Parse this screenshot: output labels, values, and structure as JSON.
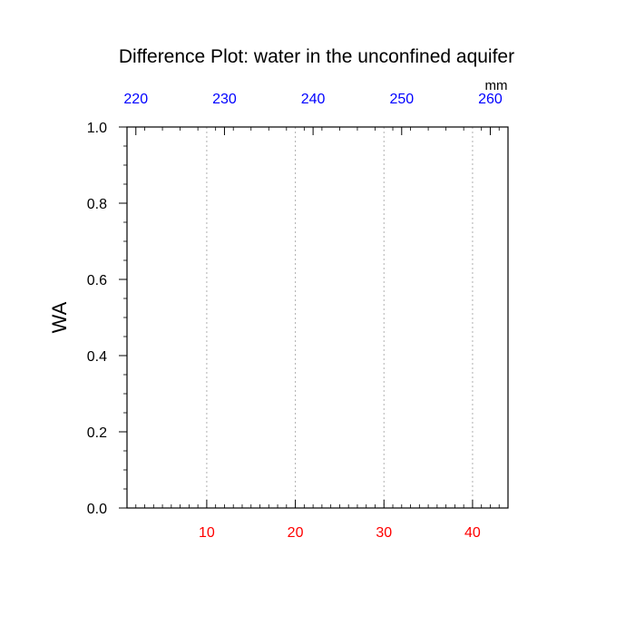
{
  "chart_data": {
    "type": "line",
    "title": "Difference Plot: water in the unconfined aquifer",
    "ylabel": "WA",
    "top_axis_unit": "mm",
    "xlim": [
      1,
      44
    ],
    "ylim": [
      0,
      1
    ],
    "bottom_axis": {
      "ticks": [
        10,
        20,
        30,
        40
      ],
      "labels": [
        "10",
        "20",
        "30",
        "40"
      ],
      "color": "#ff0000"
    },
    "top_axis": {
      "ticks": [
        220,
        230,
        240,
        250,
        260
      ],
      "labels": [
        "220",
        "230",
        "240",
        "250",
        "260"
      ],
      "color": "#0000ff",
      "range": [
        219,
        262
      ]
    },
    "y_ticks": [
      0,
      0.2,
      0.4,
      0.6,
      0.8,
      1
    ],
    "y_tick_labels": [
      "0.0",
      "0.2",
      "0.4",
      "0.6",
      "0.8",
      "1.0"
    ],
    "vertical_gridlines": [
      10,
      20,
      30,
      40
    ],
    "grid": "vertical dotted",
    "series": []
  }
}
